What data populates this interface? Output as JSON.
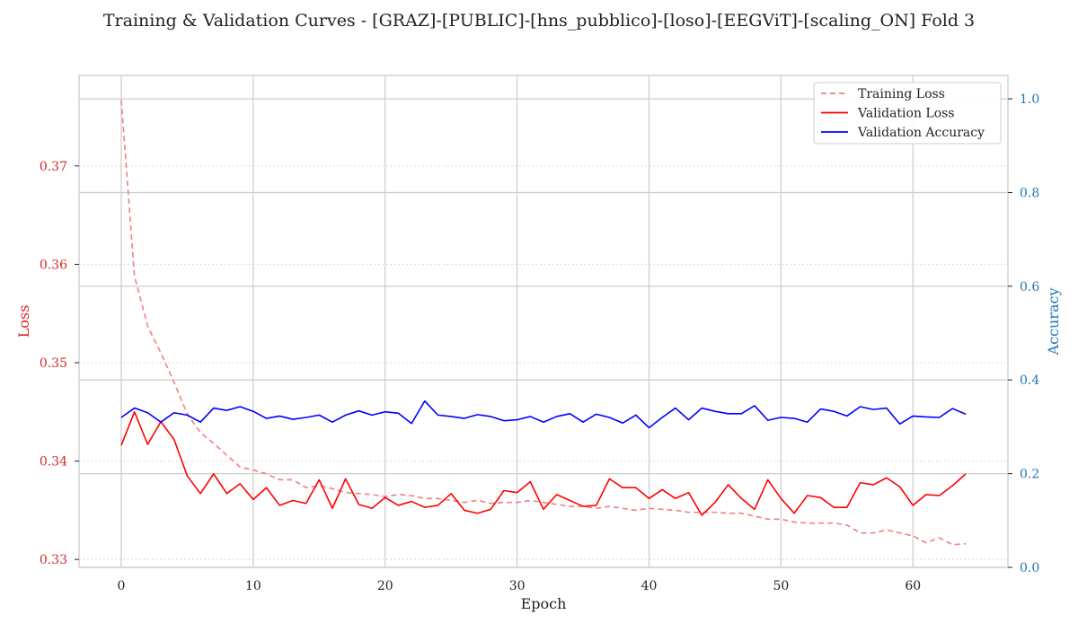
{
  "chart_data": {
    "type": "line",
    "title": "Training & Validation Curves - [GRAZ]-[PUBLIC]-[hns_pubblico]-[loso]-[EEGViT]-[scaling_ON] Fold 3",
    "xlabel": "Epoch",
    "ylabel_left": "Loss",
    "ylabel_right": "Accuracy",
    "xlim": [
      -3.2,
      67.2
    ],
    "ylim_left": [
      0.3292,
      0.3792
    ],
    "ylim_right": [
      0.0,
      1.05
    ],
    "x_ticks": [
      0,
      10,
      20,
      30,
      40,
      50,
      60
    ],
    "y_ticks_left": [
      0.33,
      0.34,
      0.35,
      0.36,
      0.37
    ],
    "y_ticks_right": [
      0.0,
      0.2,
      0.4,
      0.6,
      0.8,
      1.0
    ],
    "grid": true,
    "legend_position": "top-right",
    "colors": {
      "training_loss": "#f08080",
      "validation_loss": "#ff0000",
      "validation_accuracy": "#0000ff",
      "left_axis": "#d62728",
      "right_axis": "#1f77b4",
      "frame": "#cccccc",
      "grid": "#cccccc"
    },
    "x": [
      0,
      1,
      2,
      3,
      4,
      5,
      6,
      7,
      8,
      9,
      10,
      11,
      12,
      13,
      14,
      15,
      16,
      17,
      18,
      19,
      20,
      21,
      22,
      23,
      24,
      25,
      26,
      27,
      28,
      29,
      30,
      31,
      32,
      33,
      34,
      35,
      36,
      37,
      38,
      39,
      40,
      41,
      42,
      43,
      44,
      45,
      46,
      47,
      48,
      49,
      50,
      51,
      52,
      53,
      54,
      55,
      56,
      57,
      58,
      59,
      60,
      61,
      62,
      63,
      64
    ],
    "series": [
      {
        "name": "Training Loss",
        "axis": "left",
        "style": "dashed",
        "color": "#f08080",
        "values": [
          0.3767,
          0.3588,
          0.3537,
          0.351,
          0.348,
          0.3448,
          0.3429,
          0.3418,
          0.3406,
          0.3394,
          0.3391,
          0.3387,
          0.3381,
          0.3381,
          0.3373,
          0.3375,
          0.3372,
          0.3368,
          0.3367,
          0.3366,
          0.3364,
          0.3366,
          0.3365,
          0.3362,
          0.3362,
          0.336,
          0.3358,
          0.336,
          0.3357,
          0.3358,
          0.3358,
          0.336,
          0.3358,
          0.3356,
          0.3354,
          0.3354,
          0.3352,
          0.3354,
          0.3352,
          0.335,
          0.3352,
          0.3351,
          0.335,
          0.3348,
          0.3348,
          0.3348,
          0.3347,
          0.3347,
          0.3344,
          0.3341,
          0.3341,
          0.3338,
          0.3337,
          0.3337,
          0.3337,
          0.3335,
          0.3327,
          0.3327,
          0.333,
          0.3327,
          0.3324,
          0.3317,
          0.3322,
          0.3315,
          0.3316
        ]
      },
      {
        "name": "Validation Loss",
        "axis": "left",
        "style": "solid",
        "color": "#ff0000",
        "values": [
          0.3416,
          0.345,
          0.3417,
          0.344,
          0.3422,
          0.3385,
          0.3367,
          0.3387,
          0.3367,
          0.3377,
          0.3361,
          0.3373,
          0.3355,
          0.336,
          0.3357,
          0.3381,
          0.3352,
          0.3382,
          0.3356,
          0.3352,
          0.3363,
          0.3355,
          0.3359,
          0.3353,
          0.3355,
          0.3367,
          0.335,
          0.3347,
          0.3351,
          0.337,
          0.3368,
          0.3379,
          0.3351,
          0.3366,
          0.336,
          0.3354,
          0.3355,
          0.3382,
          0.3373,
          0.3373,
          0.3362,
          0.3371,
          0.3362,
          0.3368,
          0.3345,
          0.3358,
          0.3376,
          0.3362,
          0.3351,
          0.3381,
          0.3362,
          0.3347,
          0.3365,
          0.3363,
          0.3353,
          0.3353,
          0.3378,
          0.3376,
          0.3383,
          0.3374,
          0.3355,
          0.3366,
          0.3365,
          0.3375,
          0.3387
        ]
      },
      {
        "name": "Validation Accuracy",
        "axis": "right",
        "style": "solid",
        "color": "#0000ff",
        "values": [
          0.32,
          0.34,
          0.33,
          0.31,
          0.33,
          0.325,
          0.31,
          0.34,
          0.335,
          0.343,
          0.333,
          0.318,
          0.323,
          0.316,
          0.32,
          0.325,
          0.31,
          0.325,
          0.334,
          0.325,
          0.332,
          0.329,
          0.307,
          0.355,
          0.325,
          0.322,
          0.318,
          0.326,
          0.322,
          0.313,
          0.315,
          0.322,
          0.31,
          0.322,
          0.328,
          0.31,
          0.327,
          0.32,
          0.308,
          0.325,
          0.298,
          0.32,
          0.34,
          0.315,
          0.34,
          0.333,
          0.328,
          0.328,
          0.345,
          0.314,
          0.32,
          0.318,
          0.31,
          0.338,
          0.333,
          0.323,
          0.343,
          0.337,
          0.34,
          0.306,
          0.323,
          0.321,
          0.32,
          0.339,
          0.327
        ]
      }
    ]
  }
}
